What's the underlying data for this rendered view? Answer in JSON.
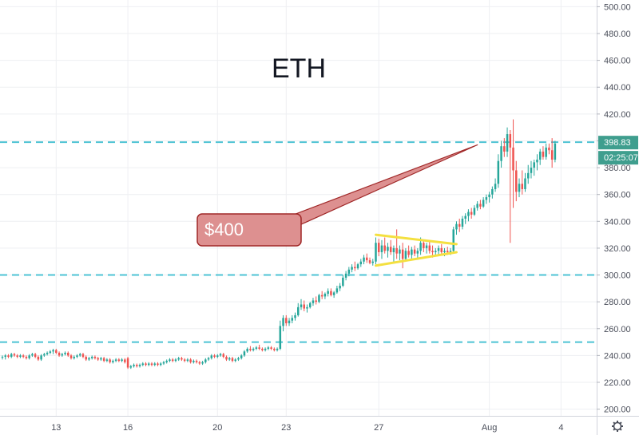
{
  "chart_data": {
    "type": "candlestick",
    "title": "ETH",
    "ylim": [
      195,
      505
    ],
    "yticks": [
      200,
      220,
      240,
      260,
      280,
      300,
      320,
      340,
      360,
      380,
      400,
      420,
      440,
      460,
      480,
      500
    ],
    "ytick_labels": [
      "200.00",
      "220.00",
      "240.00",
      "260.00",
      "280.00",
      "300.00",
      "320.00",
      "340.00",
      "360.00",
      "380.00",
      "400.00",
      "420.00",
      "440.00",
      "460.00",
      "480.00",
      "500.00"
    ],
    "xticks": [
      {
        "label": "13",
        "index": 18
      },
      {
        "label": "16",
        "index": 42
      },
      {
        "label": "20",
        "index": 72
      },
      {
        "label": "23",
        "index": 95
      },
      {
        "label": "27",
        "index": 126
      },
      {
        "label": "Aug",
        "index": 163
      },
      {
        "label": "4",
        "index": 187
      }
    ],
    "candles": [
      [
        239,
        240,
        237,
        239
      ],
      [
        239,
        241,
        237,
        240
      ],
      [
        240,
        241,
        238,
        239
      ],
      [
        239,
        242,
        238,
        241
      ],
      [
        241,
        242,
        239,
        240
      ],
      [
        240,
        241,
        238,
        239
      ],
      [
        239,
        241,
        238,
        240
      ],
      [
        240,
        241,
        238,
        239
      ],
      [
        239,
        240,
        237,
        238
      ],
      [
        238,
        241,
        237,
        240
      ],
      [
        240,
        242,
        239,
        241
      ],
      [
        241,
        242,
        238,
        239
      ],
      [
        239,
        240,
        236,
        237
      ],
      [
        237,
        241,
        236,
        240
      ],
      [
        240,
        242,
        239,
        241
      ],
      [
        241,
        243,
        240,
        242
      ],
      [
        242,
        244,
        241,
        243
      ],
      [
        243,
        245,
        241,
        244
      ],
      [
        244,
        245,
        241,
        242
      ],
      [
        242,
        243,
        239,
        240
      ],
      [
        240,
        242,
        239,
        241
      ],
      [
        241,
        243,
        240,
        242
      ],
      [
        242,
        243,
        239,
        240
      ],
      [
        240,
        241,
        237,
        238
      ],
      [
        238,
        240,
        237,
        239
      ],
      [
        239,
        241,
        238,
        240
      ],
      [
        240,
        242,
        239,
        241
      ],
      [
        241,
        242,
        238,
        239
      ],
      [
        239,
        240,
        236,
        237
      ],
      [
        237,
        239,
        236,
        238
      ],
      [
        238,
        240,
        237,
        239
      ],
      [
        239,
        240,
        237,
        238
      ],
      [
        238,
        239,
        236,
        237
      ],
      [
        237,
        239,
        236,
        238
      ],
      [
        238,
        239,
        235,
        236
      ],
      [
        236,
        238,
        235,
        237
      ],
      [
        237,
        238,
        234,
        235
      ],
      [
        235,
        237,
        234,
        236
      ],
      [
        236,
        238,
        235,
        237
      ],
      [
        237,
        238,
        235,
        236
      ],
      [
        236,
        238,
        235,
        237
      ],
      [
        237,
        238,
        234,
        235
      ],
      [
        238,
        239,
        230,
        231
      ],
      [
        231,
        233,
        230,
        232
      ],
      [
        232,
        234,
        231,
        233
      ],
      [
        233,
        234,
        231,
        232
      ],
      [
        232,
        234,
        231,
        233
      ],
      [
        233,
        235,
        232,
        234
      ],
      [
        234,
        235,
        232,
        233
      ],
      [
        233,
        235,
        232,
        234
      ],
      [
        234,
        235,
        232,
        233
      ],
      [
        233,
        235,
        232,
        234
      ],
      [
        234,
        235,
        232,
        233
      ],
      [
        233,
        235,
        232,
        234
      ],
      [
        234,
        236,
        233,
        235
      ],
      [
        235,
        237,
        234,
        236
      ],
      [
        236,
        238,
        235,
        237
      ],
      [
        237,
        238,
        235,
        236
      ],
      [
        236,
        238,
        235,
        237
      ],
      [
        237,
        239,
        236,
        238
      ],
      [
        238,
        239,
        236,
        237
      ],
      [
        237,
        238,
        235,
        236
      ],
      [
        236,
        238,
        235,
        237
      ],
      [
        237,
        238,
        234,
        235
      ],
      [
        235,
        237,
        234,
        236
      ],
      [
        236,
        237,
        234,
        235
      ],
      [
        235,
        236,
        233,
        234
      ],
      [
        234,
        236,
        233,
        235
      ],
      [
        235,
        238,
        234,
        237
      ],
      [
        237,
        239,
        236,
        238
      ],
      [
        238,
        241,
        237,
        240
      ],
      [
        240,
        241,
        238,
        239
      ],
      [
        239,
        241,
        238,
        240
      ],
      [
        240,
        242,
        239,
        241
      ],
      [
        241,
        242,
        238,
        239
      ],
      [
        239,
        240,
        236,
        237
      ],
      [
        237,
        239,
        236,
        238
      ],
      [
        238,
        239,
        235,
        236
      ],
      [
        236,
        238,
        235,
        237
      ],
      [
        237,
        239,
        236,
        238
      ],
      [
        238,
        241,
        237,
        240
      ],
      [
        240,
        244,
        239,
        243
      ],
      [
        243,
        246,
        242,
        245
      ],
      [
        245,
        247,
        243,
        244
      ],
      [
        244,
        246,
        243,
        245
      ],
      [
        245,
        247,
        244,
        246
      ],
      [
        246,
        248,
        244,
        245
      ],
      [
        245,
        246,
        243,
        244
      ],
      [
        244,
        246,
        243,
        245
      ],
      [
        245,
        247,
        244,
        246
      ],
      [
        246,
        247,
        244,
        245
      ],
      [
        245,
        246,
        243,
        244
      ],
      [
        244,
        246,
        243,
        245
      ],
      [
        245,
        266,
        244,
        262
      ],
      [
        262,
        270,
        258,
        268
      ],
      [
        268,
        270,
        262,
        264
      ],
      [
        264,
        268,
        262,
        266
      ],
      [
        266,
        270,
        264,
        268
      ],
      [
        268,
        272,
        266,
        270
      ],
      [
        270,
        279,
        269,
        276
      ],
      [
        276,
        282,
        274,
        278
      ],
      [
        278,
        281,
        273,
        275
      ],
      [
        275,
        278,
        272,
        276
      ],
      [
        276,
        280,
        275,
        279
      ],
      [
        279,
        283,
        277,
        281
      ],
      [
        281,
        284,
        278,
        280
      ],
      [
        280,
        286,
        279,
        285
      ],
      [
        285,
        288,
        282,
        284
      ],
      [
        284,
        287,
        282,
        286
      ],
      [
        286,
        290,
        284,
        288
      ],
      [
        288,
        290,
        284,
        285
      ],
      [
        285,
        288,
        283,
        287
      ],
      [
        287,
        292,
        286,
        290
      ],
      [
        290,
        294,
        288,
        292
      ],
      [
        292,
        300,
        291,
        298
      ],
      [
        298,
        303,
        296,
        301
      ],
      [
        301,
        306,
        299,
        304
      ],
      [
        304,
        308,
        302,
        306
      ],
      [
        306,
        310,
        303,
        305
      ],
      [
        305,
        309,
        304,
        308
      ],
      [
        308,
        312,
        306,
        310
      ],
      [
        310,
        315,
        308,
        313
      ],
      [
        313,
        316,
        309,
        311
      ],
      [
        311,
        313,
        308,
        309
      ],
      [
        309,
        312,
        307,
        310
      ],
      [
        310,
        328,
        308,
        324
      ],
      [
        324,
        327,
        314,
        317
      ],
      [
        317,
        326,
        312,
        322
      ],
      [
        322,
        328,
        316,
        318
      ],
      [
        318,
        324,
        313,
        321
      ],
      [
        321,
        326,
        315,
        317
      ],
      [
        317,
        322,
        310,
        320
      ],
      [
        320,
        334,
        312,
        316
      ],
      [
        316,
        322,
        311,
        319
      ],
      [
        319,
        324,
        305,
        312
      ],
      [
        312,
        320,
        310,
        318
      ],
      [
        318,
        322,
        313,
        315
      ],
      [
        315,
        321,
        312,
        319
      ],
      [
        319,
        322,
        314,
        316
      ],
      [
        316,
        320,
        312,
        318
      ],
      [
        318,
        328,
        315,
        324
      ],
      [
        324,
        326,
        317,
        320
      ],
      [
        320,
        324,
        316,
        322
      ],
      [
        322,
        325,
        316,
        318
      ],
      [
        318,
        322,
        313,
        317
      ],
      [
        317,
        320,
        314,
        318
      ],
      [
        318,
        322,
        315,
        320
      ],
      [
        320,
        323,
        316,
        317
      ],
      [
        317,
        320,
        314,
        318
      ],
      [
        318,
        321,
        315,
        317
      ],
      [
        317,
        320,
        315,
        318
      ],
      [
        318,
        336,
        317,
        334
      ],
      [
        334,
        340,
        330,
        338
      ],
      [
        338,
        342,
        332,
        336
      ],
      [
        336,
        344,
        334,
        342
      ],
      [
        342,
        346,
        338,
        344
      ],
      [
        344,
        349,
        340,
        347
      ],
      [
        347,
        350,
        342,
        345
      ],
      [
        345,
        352,
        344,
        350
      ],
      [
        350,
        355,
        348,
        353
      ],
      [
        353,
        356,
        349,
        351
      ],
      [
        351,
        358,
        350,
        356
      ],
      [
        356,
        360,
        353,
        358
      ],
      [
        358,
        362,
        354,
        360
      ],
      [
        360,
        366,
        357,
        364
      ],
      [
        364,
        372,
        362,
        368
      ],
      [
        368,
        390,
        365,
        385
      ],
      [
        385,
        400,
        380,
        396
      ],
      [
        396,
        402,
        388,
        392
      ],
      [
        392,
        410,
        388,
        405
      ],
      [
        405,
        408,
        324,
        395
      ],
      [
        395,
        416,
        350,
        378
      ],
      [
        378,
        385,
        355,
        362
      ],
      [
        362,
        372,
        358,
        368
      ],
      [
        368,
        378,
        360,
        364
      ],
      [
        364,
        376,
        362,
        372
      ],
      [
        372,
        382,
        368,
        376
      ],
      [
        376,
        385,
        372,
        380
      ],
      [
        380,
        386,
        374,
        384
      ],
      [
        384,
        390,
        378,
        386
      ],
      [
        386,
        394,
        382,
        392
      ],
      [
        392,
        396,
        386,
        388
      ],
      [
        388,
        398,
        386,
        395
      ],
      [
        395,
        398,
        390,
        393
      ],
      [
        393,
        402,
        380,
        386
      ],
      [
        386,
        400,
        384,
        398
      ]
    ],
    "levels": [
      399,
      300,
      250
    ],
    "triangle": {
      "upper": [
        [
          125,
          330
        ],
        [
          152,
          323
        ]
      ],
      "lower": [
        [
          125,
          307
        ],
        [
          152,
          317
        ]
      ]
    },
    "callout": {
      "text": "$400",
      "anchor_index": 159,
      "anchor_value": 397
    },
    "price_badge": {
      "price": "398.83",
      "timer": "02:25:07"
    },
    "colors": {
      "up": "#26a69a",
      "down": "#ef5350",
      "level_line": "#4ec3d4",
      "triangle": "#f4e040",
      "callout_fill": "#dd9090",
      "callout_stroke": "#a02828",
      "badge": "#3f9e8e",
      "grid": "#eeeff2"
    },
    "settings_icon": "gear-icon"
  }
}
